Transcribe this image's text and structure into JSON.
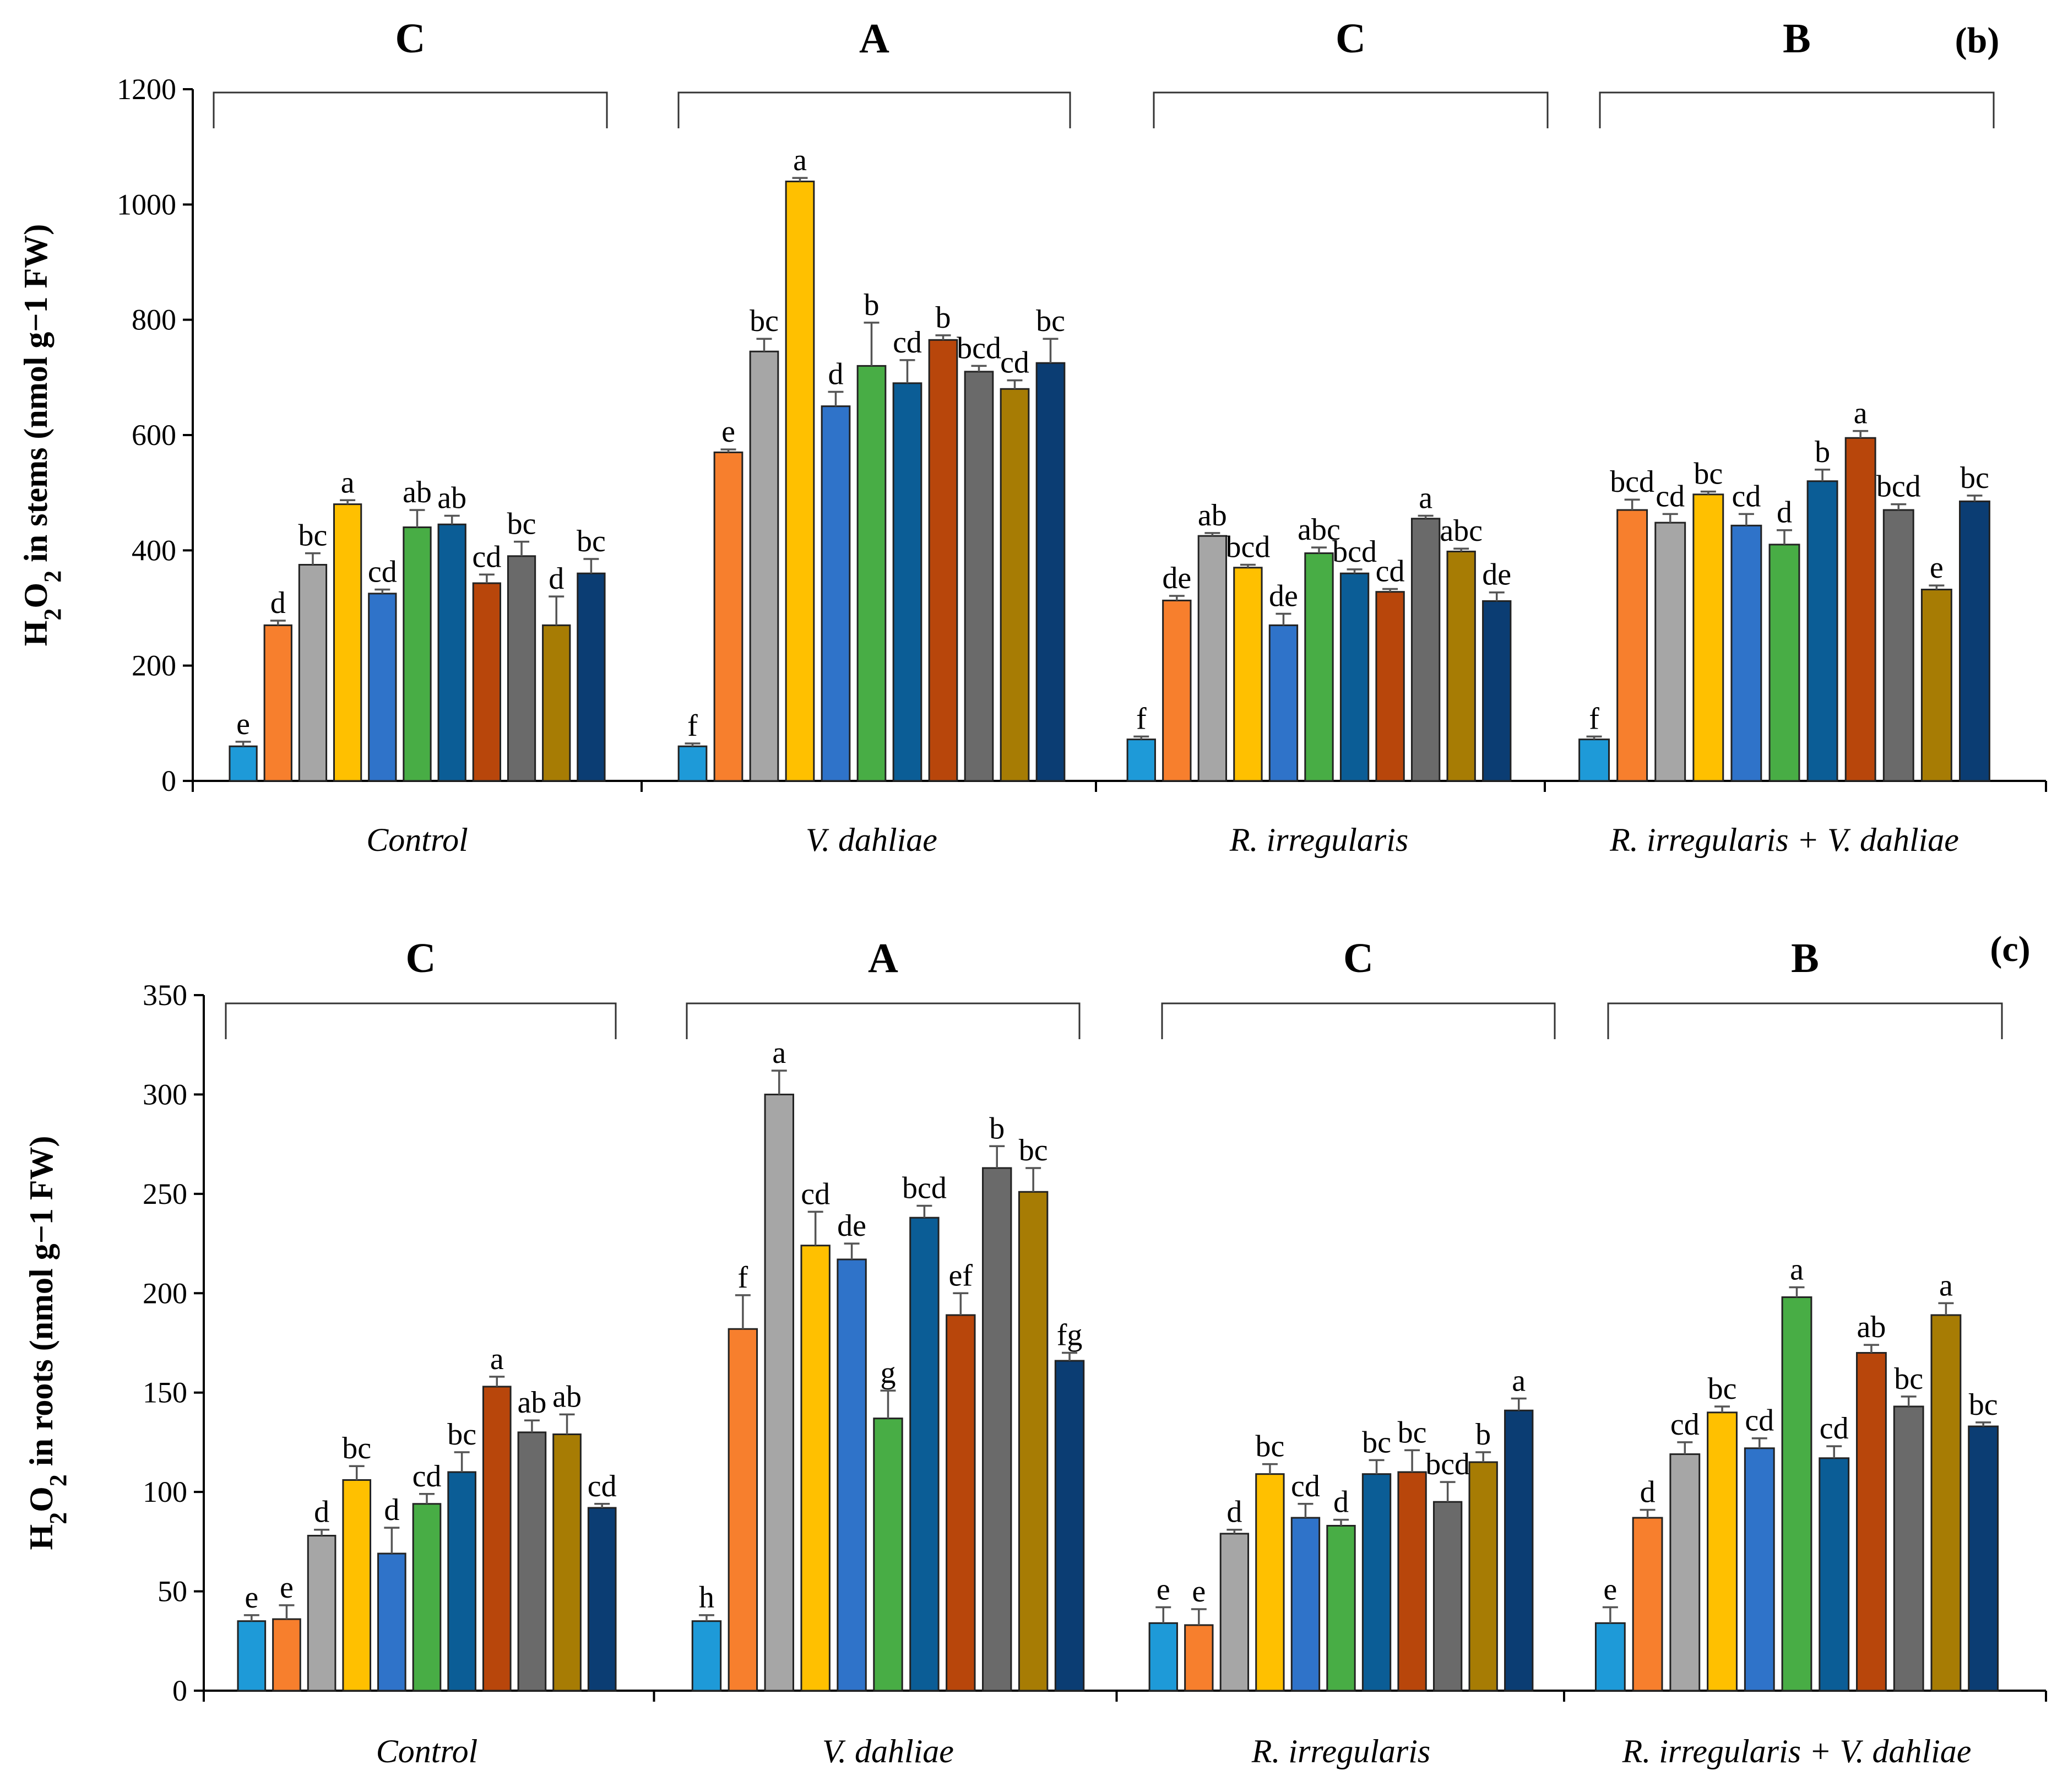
{
  "colors": [
    "#1e9ad8",
    "#f77f2d",
    "#a6a6a6",
    "#ffc000",
    "#2f73c9",
    "#48ad45",
    "#0b5d96",
    "#b8460b",
    "#6a6a6a",
    "#a77c04",
    "#0b3d73"
  ],
  "chart_data": [
    {
      "type": "bar",
      "panel": "(b)",
      "ylabel_html": "H2O2 in stems (nmol g−1 FW)",
      "ylabel_prefix": "H",
      "ylabel_sub1": "2",
      "ylabel_mid": "O",
      "ylabel_sub2": "2",
      "ylabel_suffix": " in stems (nmol g−1 FW)",
      "ylim": [
        0,
        1200
      ],
      "yticks": [
        "0",
        "200",
        "400",
        "600",
        "800",
        "1000",
        "1200"
      ],
      "categories": [
        "Control",
        "V. dahliae",
        "R. irregularis",
        "R. irregularis + V. dahliae"
      ],
      "group_letters": [
        "C",
        "A",
        "C",
        "B"
      ],
      "groups": [
        {
          "values": [
            60,
            270,
            375,
            480,
            325,
            440,
            445,
            343,
            390,
            270,
            360
          ],
          "errors": [
            8,
            8,
            20,
            7,
            7,
            30,
            15,
            15,
            25,
            50,
            25
          ],
          "letters": [
            "e",
            "d",
            "bc",
            "a",
            "cd",
            "ab",
            "ab",
            "cd",
            "bc",
            "d",
            "bc"
          ]
        },
        {
          "values": [
            60,
            570,
            745,
            1040,
            650,
            720,
            690,
            765,
            710,
            680,
            725
          ],
          "errors": [
            5,
            5,
            22,
            6,
            25,
            75,
            40,
            8,
            10,
            15,
            42
          ],
          "letters": [
            "f",
            "e",
            "bc",
            "a",
            "d",
            "b",
            "cd",
            "b",
            "bcd",
            "cd",
            "bc"
          ]
        },
        {
          "values": [
            72,
            313,
            425,
            370,
            270,
            395,
            360,
            328,
            455,
            398,
            312
          ],
          "errors": [
            5,
            8,
            5,
            5,
            20,
            10,
            7,
            5,
            5,
            5,
            15
          ],
          "letters": [
            "f",
            "de",
            "ab",
            "bcd",
            "de",
            "abc",
            "bcd",
            "cd",
            "a",
            "abc",
            "de"
          ]
        },
        {
          "values": [
            72,
            470,
            448,
            497,
            443,
            410,
            520,
            595,
            470,
            332,
            485
          ],
          "errors": [
            5,
            18,
            15,
            5,
            20,
            25,
            20,
            12,
            10,
            7,
            10
          ],
          "letters": [
            "f",
            "bcd",
            "cd",
            "bc",
            "cd",
            "d",
            "b",
            "a",
            "bcd",
            "e",
            "bc"
          ]
        }
      ]
    },
    {
      "type": "bar",
      "panel": "(c)",
      "ylabel_html": "H2O2 in roots (nmol g−1 FW)",
      "ylabel_prefix": "H",
      "ylabel_sub1": "2",
      "ylabel_mid": "O",
      "ylabel_sub2": "2",
      "ylabel_suffix": " in roots (nmol g−1 FW)",
      "ylim": [
        0,
        350
      ],
      "yticks": [
        "0",
        "50",
        "100",
        "150",
        "200",
        "250",
        "300",
        "350"
      ],
      "categories": [
        "Control",
        "V. dahliae",
        "R. irregularis",
        "R. irregularis + V. dahliae"
      ],
      "group_letters": [
        "C",
        "A",
        "C",
        "B"
      ],
      "groups": [
        {
          "values": [
            35,
            36,
            78,
            106,
            69,
            94,
            110,
            153,
            130,
            129,
            92
          ],
          "errors": [
            3,
            7,
            3,
            7,
            13,
            5,
            10,
            5,
            6,
            10,
            2
          ],
          "letters": [
            "e",
            "e",
            "d",
            "bc",
            "d",
            "cd",
            "bc",
            "a",
            "ab",
            "ab",
            "cd"
          ]
        },
        {
          "values": [
            35,
            182,
            300,
            224,
            217,
            137,
            238,
            189,
            263,
            251,
            166
          ],
          "errors": [
            3,
            17,
            12,
            17,
            8,
            14,
            6,
            11,
            11,
            12,
            4
          ],
          "letters": [
            "h",
            "f",
            "a",
            "cd",
            "de",
            "g",
            "bcd",
            "ef",
            "b",
            "bc",
            "fg"
          ]
        },
        {
          "values": [
            34,
            33,
            79,
            109,
            87,
            83,
            109,
            110,
            95,
            115,
            141
          ],
          "errors": [
            8,
            8,
            2,
            5,
            7,
            3,
            7,
            11,
            10,
            5,
            6
          ],
          "letters": [
            "e",
            "e",
            "d",
            "bc",
            "cd",
            "d",
            "bc",
            "bc",
            "bcd",
            "b",
            "a"
          ]
        },
        {
          "values": [
            34,
            87,
            119,
            140,
            122,
            198,
            117,
            170,
            143,
            189,
            133
          ],
          "errors": [
            8,
            4,
            6,
            3,
            5,
            5,
            6,
            4,
            5,
            6,
            2
          ],
          "letters": [
            "e",
            "d",
            "cd",
            "bc",
            "cd",
            "a",
            "cd",
            "ab",
            "bc",
            "a",
            "bc"
          ]
        }
      ]
    }
  ]
}
